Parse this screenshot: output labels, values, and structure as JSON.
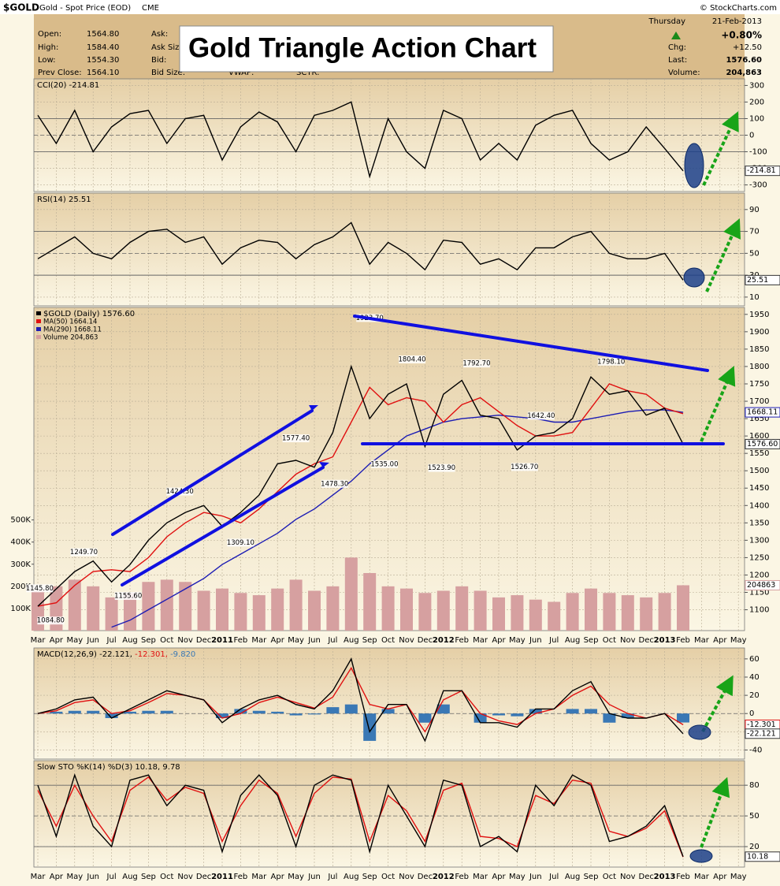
{
  "header": {
    "symbol": "$GOLD",
    "name": "Gold - Spot Price (EOD)",
    "exchange": "CME",
    "source": "© StockCharts.com",
    "day": "Thursday",
    "date": "21-Feb-2013",
    "change_pct": "+0.80%",
    "title": "Gold Triangle Action Chart",
    "fields_left": [
      [
        "Open:",
        "1564.80"
      ],
      [
        "High:",
        "1584.40"
      ],
      [
        "Low:",
        "1554.30"
      ],
      [
        "Prev Close:",
        "1564.10"
      ]
    ],
    "fields_mid": [
      "Ask:",
      "Ask Size:",
      "Bid:",
      "Bid Size:"
    ],
    "fields_extra": [
      "VWAP:",
      "SCTR:"
    ],
    "fields_right": [
      [
        "Chg:",
        "+12.50"
      ],
      [
        "Last:",
        "1576.60"
      ],
      [
        "Volume:",
        "204,863"
      ]
    ]
  },
  "chart_data": [
    {
      "type": "line",
      "title": "CCI(20) -214.81",
      "ylim": [
        -340,
        340
      ],
      "yticks": [
        -300,
        -200,
        -100,
        0,
        100,
        200,
        300
      ],
      "levels": [
        -100,
        100
      ],
      "midline": 0,
      "grid": true,
      "series": [
        {
          "name": "CCI(20)",
          "color": "#000000",
          "last_label": "-214.81",
          "values": [
            120,
            -50,
            150,
            -100,
            50,
            130,
            150,
            -50,
            100,
            120,
            -150,
            50,
            140,
            80,
            -100,
            120,
            150,
            200,
            -250,
            100,
            -100,
            -200,
            150,
            100,
            -150,
            -50,
            -150,
            60,
            120,
            150,
            -50,
            -150,
            -100,
            50,
            -80,
            -214.81,
            null,
            null,
            null
          ]
        }
      ]
    },
    {
      "type": "line",
      "title": "RSI(14) 25.51",
      "ylim": [
        2,
        105
      ],
      "yticks": [
        10,
        30,
        50,
        70,
        90
      ],
      "levels": [
        30,
        70
      ],
      "midline": 50,
      "grid": true,
      "series": [
        {
          "name": "RSI(14)",
          "color": "#000000",
          "last_label": "25.51",
          "values": [
            45,
            55,
            65,
            50,
            45,
            60,
            70,
            72,
            60,
            65,
            40,
            55,
            62,
            60,
            45,
            58,
            65,
            78,
            40,
            60,
            50,
            35,
            62,
            60,
            40,
            45,
            35,
            55,
            55,
            65,
            70,
            50,
            45,
            45,
            50,
            25.51,
            null,
            null,
            null
          ]
        }
      ]
    },
    {
      "type": "line",
      "ylim": [
        1040,
        1970
      ],
      "yticks": [
        1100,
        1150,
        1200,
        1250,
        1300,
        1350,
        1400,
        1450,
        1500,
        1550,
        1600,
        1650,
        1700,
        1750,
        1800,
        1850,
        1900,
        1950
      ],
      "grid": true,
      "vlim": [
        0,
        1460000
      ],
      "vticks": [
        {
          "value": 100000,
          "label": "100K"
        },
        {
          "value": 200000,
          "label": "200K"
        },
        {
          "value": 300000,
          "label": "300K"
        },
        {
          "value": 400000,
          "label": "400K"
        },
        {
          "value": 500000,
          "label": "500K"
        }
      ],
      "categories": [
        "Mar",
        "Apr",
        "May",
        "Jun",
        "Jul",
        "Aug",
        "Sep",
        "Oct",
        "Nov",
        "Dec",
        "2011",
        "Feb",
        "Mar",
        "Apr",
        "May",
        "Jun",
        "Jul",
        "Aug",
        "Sep",
        "Oct",
        "Nov",
        "Dec",
        "2012",
        "Feb",
        "Mar",
        "Apr",
        "May",
        "Jun",
        "Jul",
        "Aug",
        "Sep",
        "Oct",
        "Nov",
        "Dec",
        "2013",
        "Feb",
        "Mar",
        "Apr",
        "May"
      ],
      "series": [
        {
          "name": "Volume 204,863",
          "color": "#d6a0a0",
          "axis": "volume",
          "last_label": "204863",
          "values": [
            180000,
            200000,
            230000,
            200000,
            150000,
            170000,
            220000,
            230000,
            220000,
            180000,
            190000,
            170000,
            160000,
            190000,
            230000,
            180000,
            200000,
            330000,
            260000,
            200000,
            190000,
            170000,
            180000,
            200000,
            180000,
            150000,
            160000,
            140000,
            130000,
            170000,
            190000,
            170000,
            160000,
            150000,
            170000,
            204863,
            null,
            null,
            null
          ]
        },
        {
          "name": "MA(290) 1668.11",
          "color": "#1c1cb4",
          "last_label": "1668.11",
          "values": [
            null,
            null,
            null,
            null,
            1050,
            1070,
            1100,
            1130,
            1160,
            1190,
            1230,
            1260,
            1290,
            1320,
            1360,
            1390,
            1430,
            1470,
            1520,
            1560,
            1600,
            1620,
            1640,
            1650,
            1655,
            1660,
            1655,
            1650,
            1640,
            1640,
            1650,
            1660,
            1670,
            1675,
            1675,
            1668.11,
            null,
            null,
            null
          ]
        },
        {
          "name": "MA(50) 1664.14",
          "color": "#e01010",
          "values": [
            1110,
            1120,
            1170,
            1210,
            1215,
            1210,
            1250,
            1310,
            1350,
            1380,
            1370,
            1350,
            1390,
            1440,
            1490,
            1520,
            1540,
            1640,
            1740,
            1690,
            1710,
            1700,
            1640,
            1690,
            1710,
            1670,
            1630,
            1600,
            1600,
            1610,
            1680,
            1750,
            1730,
            1720,
            1680,
            1664.14,
            null,
            null,
            null
          ]
        },
        {
          "name": "$GOLD (Daily) 1576.60",
          "color": "#000000",
          "last_label": "1576.60",
          "values": [
            1110,
            1160,
            1210,
            1240,
            1180,
            1230,
            1300,
            1350,
            1380,
            1400,
            1340,
            1380,
            1430,
            1520,
            1530,
            1510,
            1610,
            1800,
            1650,
            1720,
            1750,
            1570,
            1720,
            1760,
            1660,
            1650,
            1560,
            1600,
            1610,
            1650,
            1770,
            1720,
            1730,
            1660,
            1680,
            1576.6,
            null,
            null,
            null
          ]
        }
      ],
      "annotations": [
        {
          "label": "1923.70",
          "x": 18.0,
          "value": 1923.7
        },
        {
          "label": "1804.40",
          "x": 20.3,
          "value": 1804.4
        },
        {
          "label": "1792.70",
          "x": 23.8,
          "value": 1792.7
        },
        {
          "label": "1798.10",
          "x": 31.1,
          "value": 1798.1
        },
        {
          "label": "1642.40",
          "x": 27.3,
          "value": 1642.4
        },
        {
          "label": "1577.40",
          "x": 14.0,
          "value": 1577.4
        },
        {
          "label": "1424.30",
          "x": 7.7,
          "value": 1424.3
        },
        {
          "label": "1249.70",
          "x": 2.5,
          "value": 1249.7
        },
        {
          "label": "1145.80",
          "x": 0.1,
          "value": 1145.8
        },
        {
          "label": "1084.80",
          "x": 0.7,
          "value": 1084.8
        },
        {
          "label": "1155.60",
          "x": 4.9,
          "value": 1155.6
        },
        {
          "label": "1309.10",
          "x": 11.0,
          "value": 1309.1
        },
        {
          "label": "1478.30",
          "x": 16.1,
          "value": 1478.3
        },
        {
          "label": "1535.00",
          "x": 18.8,
          "value": 1535.0
        },
        {
          "label": "1523.90",
          "x": 21.9,
          "value": 1523.9
        },
        {
          "label": "1526.70",
          "x": 26.4,
          "value": 1526.7
        }
      ]
    },
    {
      "type": "line",
      "title_parts": [
        {
          "text": "MACD(12,26,9) -22.121,",
          "color": "#000000"
        },
        {
          "text": "-12.301,",
          "color": "#e01010"
        },
        {
          "text": "-9.820",
          "color": "#3a78b5"
        }
      ],
      "ylim": [
        -50,
        72
      ],
      "yticks": [
        -40,
        -20,
        0,
        20,
        40,
        60
      ],
      "midline": 0,
      "grid": true,
      "series": [
        {
          "name": "Histogram",
          "type": "bar",
          "color": "#3a78b5",
          "values": [
            0,
            2,
            3,
            3,
            -5,
            2,
            3,
            3,
            0,
            0,
            -5,
            5,
            3,
            2,
            -2,
            -1,
            7,
            10,
            -30,
            5,
            0,
            -10,
            10,
            0,
            -10,
            -2,
            -3,
            5,
            0,
            5,
            5,
            -10,
            -5,
            0,
            0,
            -9.82,
            null,
            null,
            null
          ]
        },
        {
          "name": "Signal",
          "color": "#e01010",
          "last_label": "-12.301",
          "values": [
            0,
            3,
            12,
            15,
            0,
            3,
            12,
            22,
            20,
            15,
            -5,
            0,
            12,
            18,
            12,
            6,
            18,
            50,
            10,
            5,
            10,
            -20,
            15,
            25,
            0,
            -8,
            -12,
            0,
            5,
            20,
            30,
            10,
            0,
            -5,
            0,
            -12.301,
            null,
            null,
            null
          ]
        },
        {
          "name": "MACD",
          "color": "#000000",
          "last_label": "-22.121",
          "values": [
            0,
            5,
            15,
            18,
            -5,
            5,
            15,
            25,
            20,
            15,
            -10,
            5,
            15,
            20,
            10,
            5,
            25,
            60,
            -20,
            10,
            10,
            -30,
            25,
            25,
            -10,
            -10,
            -15,
            5,
            5,
            25,
            35,
            0,
            -5,
            -5,
            0,
            -22.121,
            null,
            null,
            null
          ]
        }
      ]
    },
    {
      "type": "line",
      "title": "Slow STO %K(14) %D(3) 10.18, 9.78",
      "ylim": [
        0,
        104
      ],
      "yticks": [
        20,
        50,
        80
      ],
      "levels": [
        20,
        80
      ],
      "midline": 50,
      "grid": true,
      "categories": [
        "Mar",
        "Apr",
        "May",
        "Jun",
        "Jul",
        "Aug",
        "Sep",
        "Oct",
        "Nov",
        "Dec",
        "2011",
        "Feb",
        "Mar",
        "Apr",
        "May",
        "Jun",
        "Jul",
        "Aug",
        "Sep",
        "Oct",
        "Nov",
        "Dec",
        "2012",
        "Feb",
        "Mar",
        "Apr",
        "May",
        "Jun",
        "Jul",
        "Aug",
        "Sep",
        "Oct",
        "Nov",
        "Dec",
        "2013",
        "Feb",
        "Mar",
        "Apr",
        "May"
      ],
      "series": [
        {
          "name": "%D(3)",
          "color": "#e01010",
          "values": [
            75,
            40,
            80,
            50,
            25,
            75,
            88,
            65,
            78,
            72,
            25,
            60,
            85,
            72,
            30,
            72,
            88,
            86,
            25,
            70,
            55,
            25,
            75,
            82,
            30,
            28,
            20,
            70,
            62,
            85,
            82,
            35,
            30,
            38,
            55,
            9.78,
            null,
            null,
            null
          ]
        },
        {
          "name": "%K(14)",
          "color": "#000000",
          "last_label": "10.18",
          "values": [
            80,
            30,
            90,
            40,
            20,
            85,
            90,
            60,
            80,
            75,
            15,
            70,
            90,
            70,
            20,
            80,
            90,
            85,
            15,
            80,
            50,
            20,
            85,
            80,
            20,
            30,
            15,
            80,
            60,
            90,
            80,
            25,
            30,
            40,
            60,
            10.18,
            null,
            null,
            null
          ]
        }
      ]
    }
  ]
}
